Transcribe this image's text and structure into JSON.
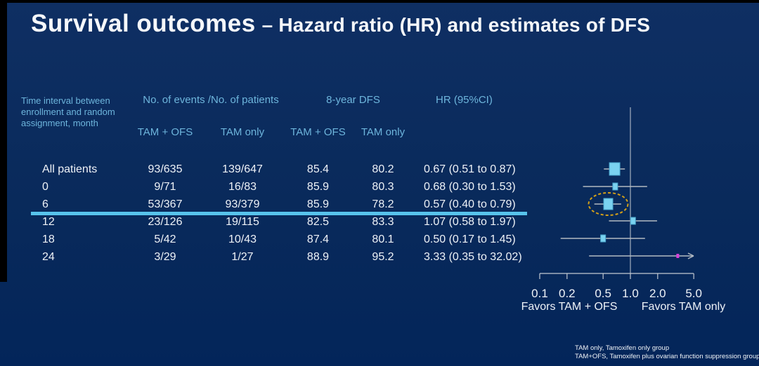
{
  "slide": {
    "title_main": "Survival outcomes",
    "title_sub": "– Hazard ratio (HR) and estimates of DFS"
  },
  "table": {
    "col_group_headers": {
      "row_label": "Time interval between enrollment and random assignment, month",
      "events": "No. of events /No. of patients",
      "dfs": "8-year DFS",
      "hr": "HR (95%CI)"
    },
    "sub_headers": {
      "events_tam_ofs": "TAM + OFS",
      "events_tam_only": "TAM only",
      "dfs_tam_ofs": "TAM + OFS",
      "dfs_tam_only": "TAM only"
    },
    "rows": [
      {
        "label": "All patients",
        "events_tam_ofs": "93/635",
        "events_tam_only": "139/647",
        "dfs_tam_ofs": "85.4",
        "dfs_tam_only": "80.2",
        "hr_ci": "0.67 (0.51 to 0.87)"
      },
      {
        "label": "0",
        "events_tam_ofs": "9/71",
        "events_tam_only": "16/83",
        "dfs_tam_ofs": "85.9",
        "dfs_tam_only": "80.3",
        "hr_ci": "0.68 (0.30 to 1.53)"
      },
      {
        "label": "6",
        "events_tam_ofs": "53/367",
        "events_tam_only": "93/379",
        "dfs_tam_ofs": "85.9",
        "dfs_tam_only": "78.2",
        "hr_ci": "0.57 (0.40 to 0.79)"
      },
      {
        "label": "12",
        "events_tam_ofs": "23/126",
        "events_tam_only": "19/115",
        "dfs_tam_ofs": "82.5",
        "dfs_tam_only": "83.3",
        "hr_ci": "1.07 (0.58 to 1.97)"
      },
      {
        "label": "18",
        "events_tam_ofs": "5/42",
        "events_tam_only": "10/43",
        "dfs_tam_ofs": "87.4",
        "dfs_tam_only": "80.1",
        "hr_ci": "0.50 (0.17 to 1.45)"
      },
      {
        "label": "24",
        "events_tam_ofs": "3/29",
        "events_tam_only": "1/27",
        "dfs_tam_ofs": "88.9",
        "dfs_tam_only": "95.2",
        "hr_ci": "3.33 (0.35 to 32.02)"
      }
    ]
  },
  "highlight": {
    "highlighted_row_label": "6",
    "underline_color": "#57c3ec",
    "ellipse_color": "#d4a018"
  },
  "chart_data": {
    "type": "scatter",
    "subtype": "forest-plot",
    "x_scale": "log",
    "ref_line": 1.0,
    "x_ticks": [
      0.1,
      0.2,
      0.5,
      1.0,
      2.0,
      5.0
    ],
    "x_tick_labels": [
      "0.1",
      "0.2",
      "0.5",
      "1.0",
      "2.0",
      "5.0"
    ],
    "xlim": [
      0.1,
      5.0
    ],
    "favors_left": "Favors TAM + OFS",
    "favors_right": "Favors TAM only",
    "series": [
      {
        "label": "All patients",
        "hr": 0.67,
        "lo": 0.51,
        "hi": 0.87,
        "marker": "large"
      },
      {
        "label": "0",
        "hr": 0.68,
        "lo": 0.3,
        "hi": 1.53,
        "marker": "small"
      },
      {
        "label": "6",
        "hr": 0.57,
        "lo": 0.4,
        "hi": 0.79,
        "marker": "medium",
        "circled": true
      },
      {
        "label": "12",
        "hr": 1.07,
        "lo": 0.58,
        "hi": 1.97,
        "marker": "small"
      },
      {
        "label": "18",
        "hr": 0.5,
        "lo": 0.17,
        "hi": 1.45,
        "marker": "small"
      },
      {
        "label": "24",
        "hr": 3.33,
        "lo": 0.35,
        "hi": 32.02,
        "marker": "tiny",
        "color": "#d841d8",
        "arrow_right": true
      }
    ],
    "annotations": [
      "dashed ellipse highlights the month-6 subgroup marker"
    ]
  },
  "footnote": {
    "line1": "TAM only, Tamoxifen only group",
    "line2": "TAM+OFS, Tamoxifen plus ovarian function suppression group"
  },
  "colors": {
    "background": "#092a5b",
    "header_blue": "#6db5dc",
    "body_text": "#eef2f7",
    "marker_fill": "#7ad2f0",
    "marker_stroke": "#4aa6cc",
    "ci_line": "#b3bac2",
    "axis_line": "#c2c9d1",
    "highlight_line": "#57c3ec",
    "ellipse": "#d4a018",
    "special_marker": "#d841d8"
  }
}
